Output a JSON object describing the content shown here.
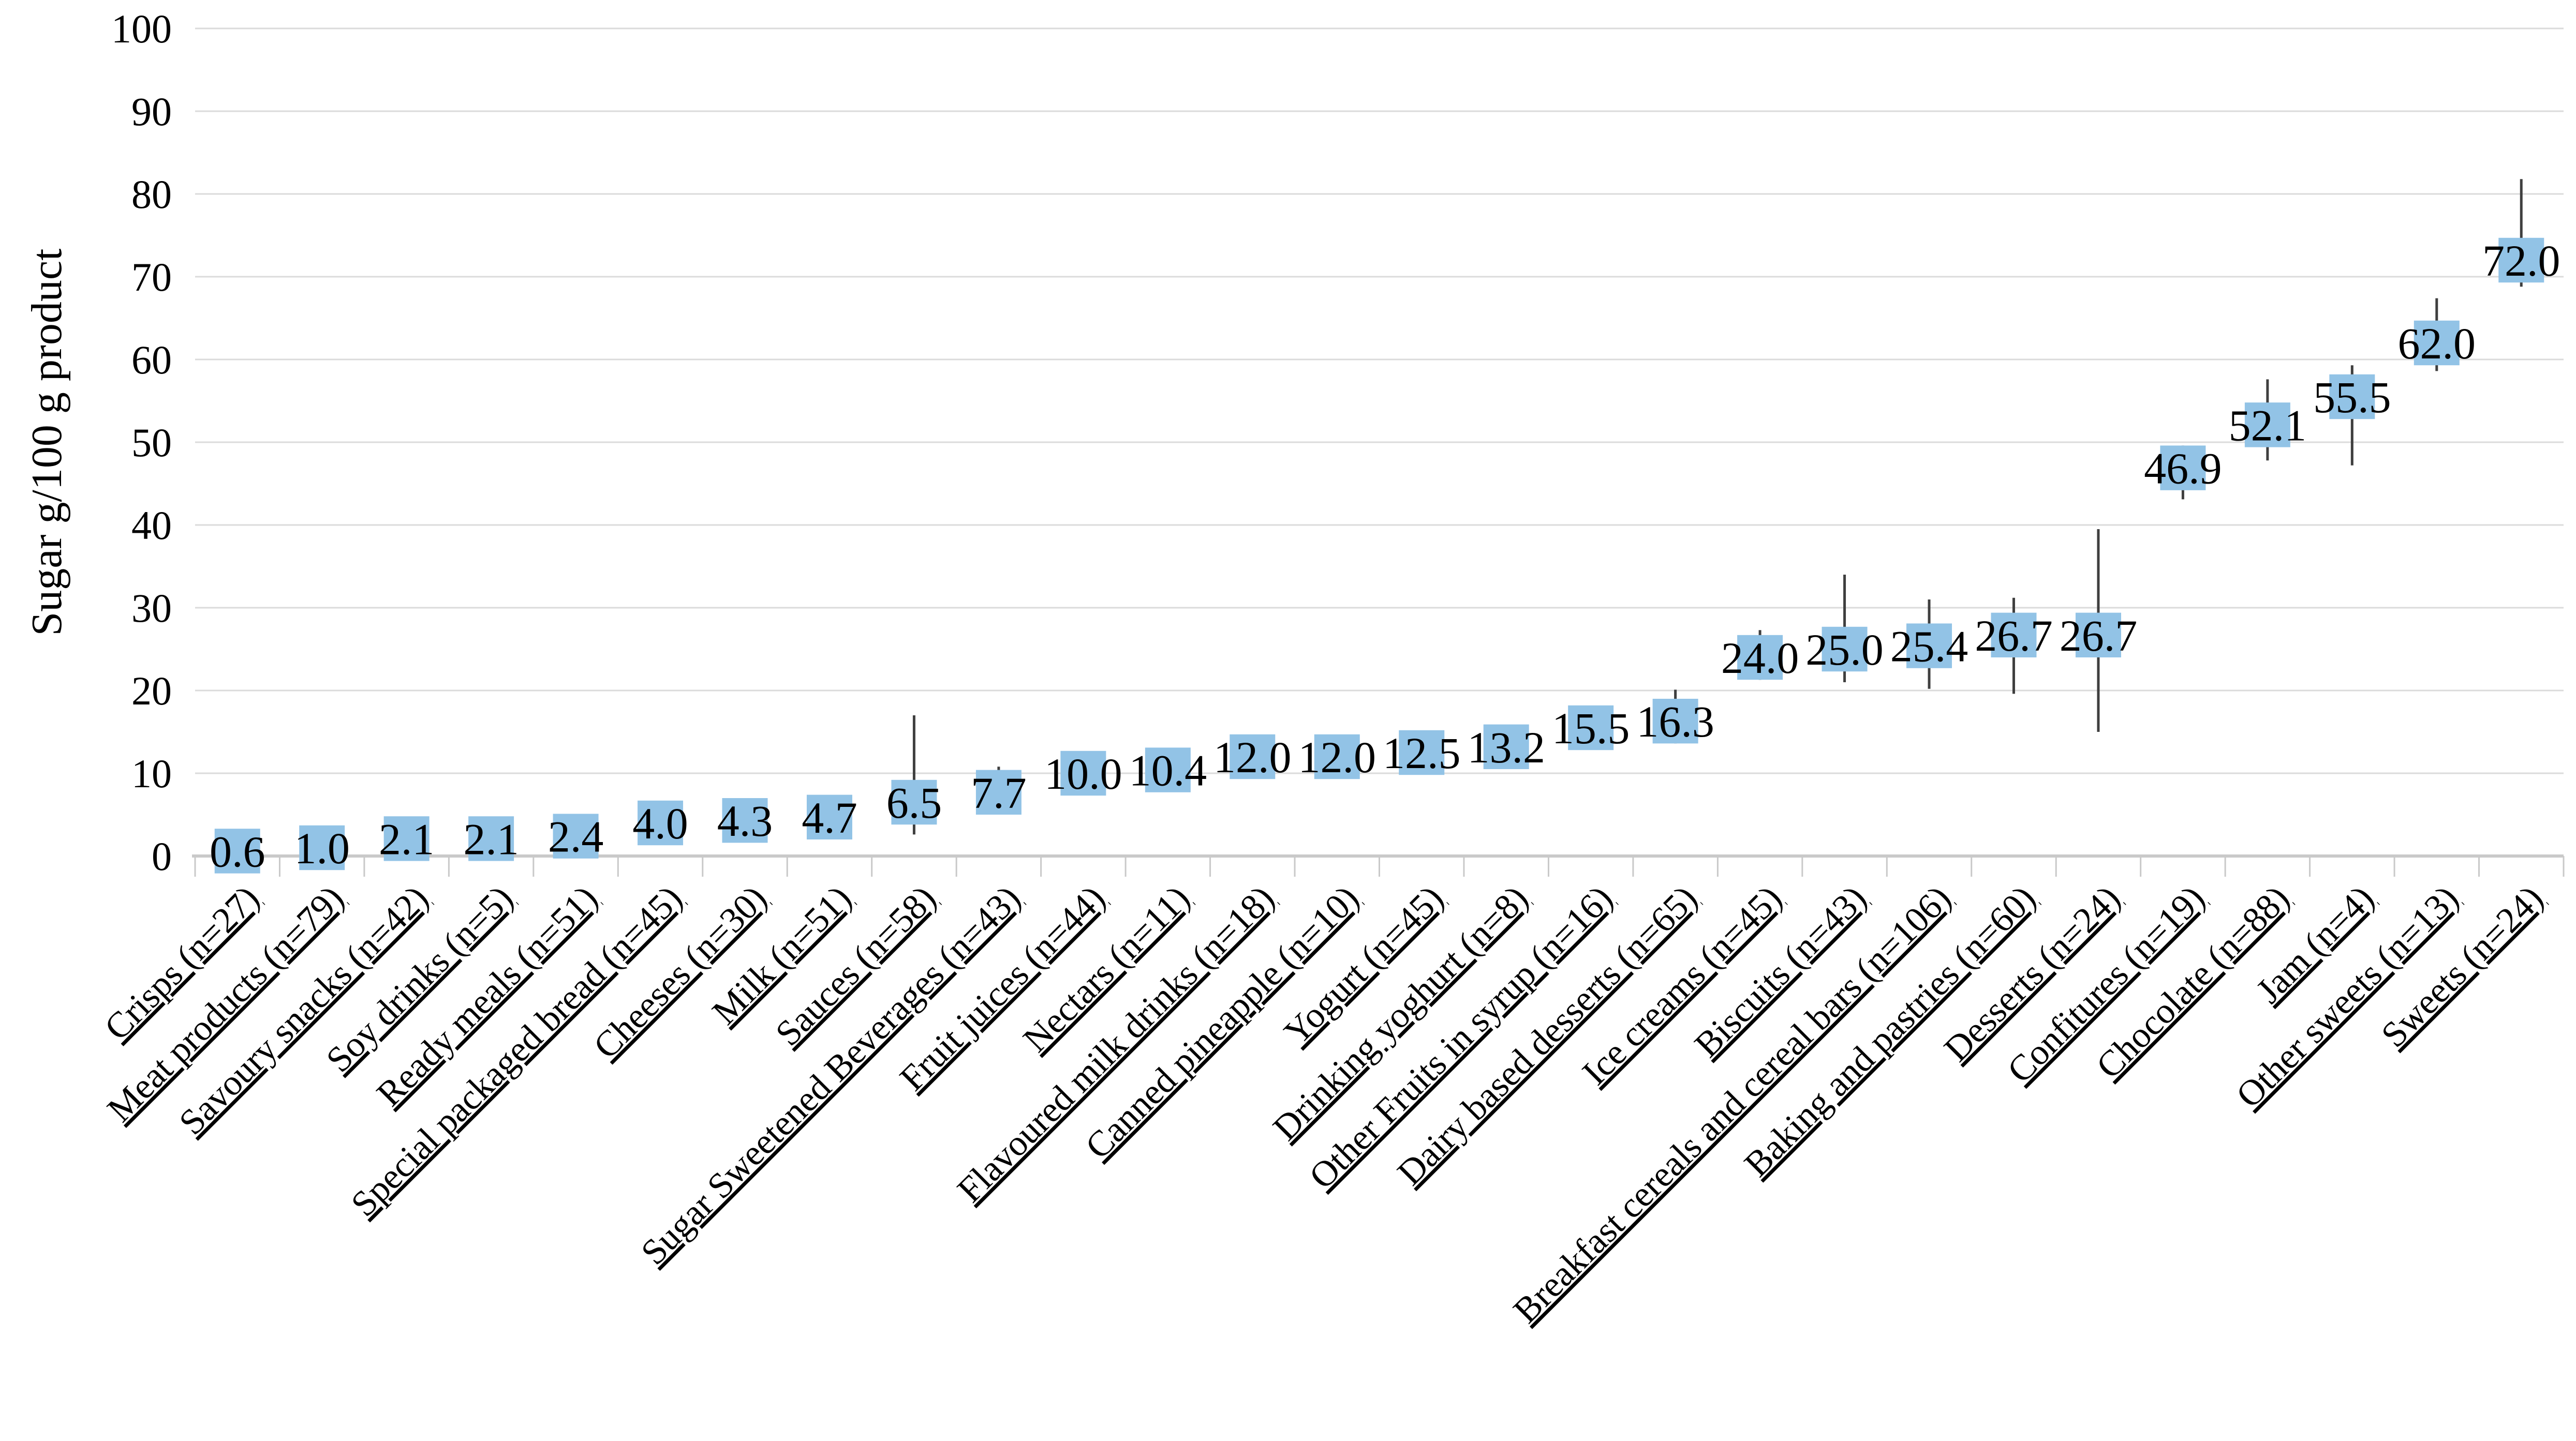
{
  "chart_data": {
    "type": "box",
    "title": "",
    "xlabel": "",
    "ylabel": "Sugar g/100 g product",
    "ylim": [
      0,
      100
    ],
    "yticks": [
      0,
      10,
      20,
      30,
      40,
      50,
      60,
      70,
      80,
      90,
      100
    ],
    "grid": "horizontal",
    "legend": "none",
    "colors": {
      "box": "#92C3E6",
      "whisker": "#3F3F3F",
      "gridline": "#DBDBDB",
      "axis": "#C9C9C9",
      "text": "#000000"
    },
    "points": [
      {
        "category": "Crisps (n=27)",
        "value": 0.6,
        "value_label": "0.6",
        "box_low": -2.1,
        "box_high": 3.3,
        "whisker_low": null,
        "whisker_high": null
      },
      {
        "category": "Meat products (n=79)",
        "value": 1.0,
        "value_label": "1.0",
        "box_low": -1.7,
        "box_high": 3.7,
        "whisker_low": null,
        "whisker_high": null
      },
      {
        "category": "Savoury snacks (n=42)",
        "value": 2.1,
        "value_label": "2.1",
        "box_low": -0.6,
        "box_high": 4.8,
        "whisker_low": null,
        "whisker_high": null
      },
      {
        "category": "Soy drinks (n=5)",
        "value": 2.1,
        "value_label": "2.1",
        "box_low": -0.6,
        "box_high": 4.8,
        "whisker_low": null,
        "whisker_high": null
      },
      {
        "category": "Ready meals (n=51)",
        "value": 2.4,
        "value_label": "2.4",
        "box_low": -0.3,
        "box_high": 5.1,
        "whisker_low": null,
        "whisker_high": null
      },
      {
        "category": "Special packaged bread (n=45)",
        "value": 4.0,
        "value_label": "4.0",
        "box_low": 1.3,
        "box_high": 6.7,
        "whisker_low": null,
        "whisker_high": null
      },
      {
        "category": "Cheeses (n=30)",
        "value": 4.3,
        "value_label": "4.3",
        "box_low": 1.6,
        "box_high": 7.0,
        "whisker_low": null,
        "whisker_high": null
      },
      {
        "category": "Milk (n=51)",
        "value": 4.7,
        "value_label": "4.7",
        "box_low": 2.0,
        "box_high": 7.4,
        "whisker_low": null,
        "whisker_high": null
      },
      {
        "category": "Sauces (n=58)",
        "value": 6.5,
        "value_label": "6.5",
        "box_low": 3.8,
        "box_high": 9.2,
        "whisker_low": 2.6,
        "whisker_high": 17.0
      },
      {
        "category": "Sugar Sweetened Beverages (n=43)",
        "value": 7.7,
        "value_label": "7.7",
        "box_low": 5.0,
        "box_high": 10.4,
        "whisker_low": null,
        "whisker_high": 10.8
      },
      {
        "category": "Fruit juices (n=44)",
        "value": 10.0,
        "value_label": "10.0",
        "box_low": 7.3,
        "box_high": 12.7,
        "whisker_low": null,
        "whisker_high": null
      },
      {
        "category": "Nectars (n=11)",
        "value": 10.4,
        "value_label": "10.4",
        "box_low": 7.7,
        "box_high": 13.1,
        "whisker_low": null,
        "whisker_high": null
      },
      {
        "category": "Flavoured milk drinks (n=18)",
        "value": 12.0,
        "value_label": "12.0",
        "box_low": 9.3,
        "box_high": 14.7,
        "whisker_low": null,
        "whisker_high": null
      },
      {
        "category": "Canned pineapple (n=10)",
        "value": 12.0,
        "value_label": "12.0",
        "box_low": 9.3,
        "box_high": 14.7,
        "whisker_low": null,
        "whisker_high": null
      },
      {
        "category": "Yogurt (n=45)",
        "value": 12.5,
        "value_label": "12.5",
        "box_low": 9.8,
        "box_high": 15.2,
        "whisker_low": null,
        "whisker_high": null
      },
      {
        "category": "Drinking yoghurt (n=8)",
        "value": 13.2,
        "value_label": "13.2",
        "box_low": 10.5,
        "box_high": 15.9,
        "whisker_low": null,
        "whisker_high": null
      },
      {
        "category": "Other Fruits in syrup (n=16)",
        "value": 15.5,
        "value_label": "15.5",
        "box_low": 12.8,
        "box_high": 18.2,
        "whisker_low": null,
        "whisker_high": null
      },
      {
        "category": "Dairy based desserts (n=65)",
        "value": 16.3,
        "value_label": "16.3",
        "box_low": 13.6,
        "box_high": 19.0,
        "whisker_low": null,
        "whisker_high": 20.1
      },
      {
        "category": "Ice creams (n=45)",
        "value": 24.0,
        "value_label": "24.0",
        "box_low": 21.3,
        "box_high": 26.7,
        "whisker_low": null,
        "whisker_high": 27.3
      },
      {
        "category": "Biscuits (n=43)",
        "value": 25.0,
        "value_label": "25.0",
        "box_low": 22.3,
        "box_high": 27.7,
        "whisker_low": 21.0,
        "whisker_high": 34.0
      },
      {
        "category": "Breakfast cereals and cereal bars (n=106)",
        "value": 25.4,
        "value_label": "25.4",
        "box_low": 22.7,
        "box_high": 28.1,
        "whisker_low": 20.2,
        "whisker_high": 31.0
      },
      {
        "category": "Baking and pastries (n=60)",
        "value": 26.7,
        "value_label": "26.7",
        "box_low": 24.0,
        "box_high": 29.4,
        "whisker_low": 19.6,
        "whisker_high": 31.2
      },
      {
        "category": "Desserts (n=24)",
        "value": 26.7,
        "value_label": "26.7",
        "box_low": 24.0,
        "box_high": 29.4,
        "whisker_low": 15.0,
        "whisker_high": 39.5
      },
      {
        "category": "Confitures (n=19)",
        "value": 46.9,
        "value_label": "46.9",
        "box_low": 44.2,
        "box_high": 49.6,
        "whisker_low": 43.1,
        "whisker_high": null
      },
      {
        "category": "Chocolate (n=88)",
        "value": 52.1,
        "value_label": "52.1",
        "box_low": 49.4,
        "box_high": 54.8,
        "whisker_low": 47.8,
        "whisker_high": 57.6
      },
      {
        "category": "Jam (n=4)",
        "value": 55.5,
        "value_label": "55.5",
        "box_low": 52.8,
        "box_high": 58.2,
        "whisker_low": 47.2,
        "whisker_high": 59.3
      },
      {
        "category": "Other sweets (n=13)",
        "value": 62.0,
        "value_label": "62.0",
        "box_low": 59.3,
        "box_high": 64.7,
        "whisker_low": 58.6,
        "whisker_high": 67.4
      },
      {
        "category": "Sweets (n=24)",
        "value": 72.0,
        "value_label": "72.0",
        "box_low": 69.3,
        "box_high": 74.7,
        "whisker_low": 68.8,
        "whisker_high": 81.8
      }
    ]
  }
}
